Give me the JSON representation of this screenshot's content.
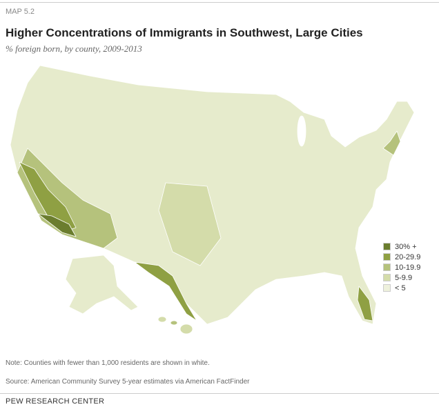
{
  "header": {
    "label": "MAP 5.2",
    "title": "Higher Concentrations of Immigrants in Southwest, Large Cities",
    "subtitle": "% foreign born, by county, 2009-2013"
  },
  "legend": [
    {
      "label": "30% +",
      "color": "#6b7d2e"
    },
    {
      "label": "20-29.9",
      "color": "#8fa043"
    },
    {
      "label": "10-19.9",
      "color": "#b5c27c"
    },
    {
      "label": "5-9.9",
      "color": "#d4dcaa"
    },
    {
      "label": "< 5",
      "color": "#eef1dc"
    }
  ],
  "footer": {
    "note": "Note: Counties with fewer than 1,000 residents are shown in white.",
    "source": "Source: American Community Survey 5-year estimates via American FactFinder",
    "brand": "PEW RESEARCH CENTER"
  }
}
